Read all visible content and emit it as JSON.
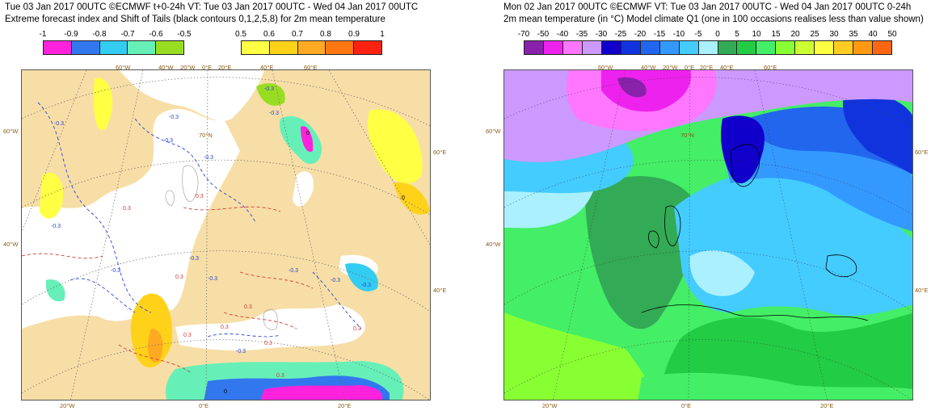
{
  "left": {
    "title_line1": "Tue 03 Jan 2017 00UTC ©ECMWF t+0-24h  VT: Tue 03 Jan 2017 00UTC - Wed 04 Jan 2017 00UTC",
    "title_line2": "Extreme forecast index and Shift of Tails (black contours 0,1,2,5,8) for 2m mean temperature",
    "legend_neg": {
      "labels": [
        "-1",
        "-0.9",
        "-0.8",
        "-0.7",
        "-0.6",
        "-0.5"
      ],
      "colors": [
        "#ff22dd",
        "#3377ee",
        "#33ccf2",
        "#66f0b8",
        "#99dd22"
      ]
    },
    "legend_pos": {
      "labels": [
        "0.5",
        "0.6",
        "0.7",
        "0.8",
        "0.9",
        "1"
      ],
      "colors": [
        "#ffff44",
        "#ffd21a",
        "#ffaa22",
        "#ff7711",
        "#ff2211"
      ]
    },
    "lon_top": [
      "60°W",
      "40°W",
      "20°W",
      "0°E",
      "20°E",
      "40°E",
      "60°E"
    ],
    "lat_left": [
      "60°W",
      "40°W"
    ],
    "lat_right": [
      "60°E",
      "40°E"
    ],
    "lon_bottom": [
      "20°W",
      "0°E",
      "20°E"
    ],
    "lat_inner": "70°N",
    "contour_labels": [
      "-0.3",
      "-0.3",
      "-0.3",
      "-0.3",
      "0.3",
      "0.3",
      "-0.3",
      "-0.3",
      "-0.3",
      "0.3",
      "0.3",
      "-0.3",
      "0.3",
      "0",
      "0",
      "-0.3",
      "0.3",
      "-0.3",
      "-0.3",
      "-0.3",
      "0.3",
      "-0.3",
      "0.3",
      "0.3",
      "-0.3",
      "0"
    ],
    "colors": {
      "land": "#f7dea6",
      "sea": "#ffffff",
      "contour_neg": "#2a45d6",
      "contour_pos": "#d23a3a",
      "graticule": "#666666"
    }
  },
  "right": {
    "title_line1": "Mon 02 Jan 2017 00UTC ©ECMWF VT: Tue 03 Jan 2017 00UTC - Wed 04 Jan 2017 00UTC   0-24h",
    "title_line2": "2m mean temperature (in °C)  Model climate Q1  (one in 100 occasions realises less than value shown)",
    "legend": {
      "labels": [
        "-70",
        "-50",
        "-40",
        "-35",
        "-30",
        "-25",
        "-20",
        "-15",
        "-10",
        "-5",
        "0",
        "5",
        "10",
        "15",
        "20",
        "25",
        "30",
        "35",
        "40",
        "50"
      ],
      "colors": [
        "#8822aa",
        "#ee22ee",
        "#ff77ff",
        "#cc99ff",
        "#1100cc",
        "#1133dd",
        "#2266ee",
        "#3399ff",
        "#44ccff",
        "#aaf0ff",
        "#33aa55",
        "#22cc44",
        "#44ee66",
        "#88ff33",
        "#ccff33",
        "#ffff44",
        "#ffcc22",
        "#ff9911",
        "#ff6611"
      ]
    },
    "lon_top": [
      "60°W",
      "40°W",
      "20°W",
      "0°E",
      "20°E",
      "40°E",
      "60°E"
    ],
    "lat_left": [
      "60°W",
      "40°W"
    ],
    "lat_right": [
      "60°E",
      "40°E"
    ],
    "lon_bottom": [
      "20°W",
      "0°E",
      "20°E"
    ],
    "lat_inner": "70°N"
  }
}
